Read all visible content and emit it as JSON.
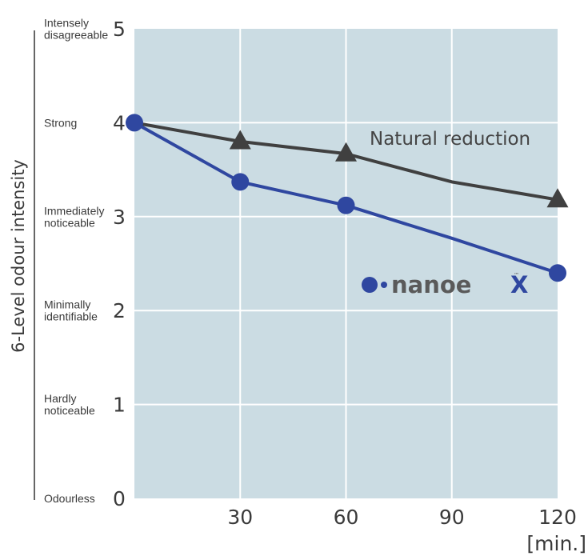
{
  "chart_data": {
    "type": "line",
    "title": "",
    "xlabel": "[min.]",
    "ylabel": "6-Level odour intensity",
    "x": [
      0,
      30,
      60,
      90,
      120
    ],
    "xticks": [
      "30",
      "60",
      "90",
      "120"
    ],
    "xlim": [
      0,
      120
    ],
    "ylim": [
      0,
      5
    ],
    "yticks": [
      "0",
      "1",
      "2",
      "3",
      "4",
      "5"
    ],
    "ylevels": [
      [
        "Odourless"
      ],
      [
        "Hardly",
        "noticeable"
      ],
      [
        "Minimally",
        "identifiable"
      ],
      [
        "Immediately",
        "noticeable"
      ],
      [
        "Strong"
      ],
      [
        "Intensely",
        "disagreeable"
      ]
    ],
    "grid": true,
    "series": [
      {
        "name": "Natural reduction",
        "color": "#404040",
        "marker": "triangle",
        "points": [
          [
            0,
            4.0
          ],
          [
            30,
            3.8
          ],
          [
            60,
            3.67
          ],
          [
            90,
            3.37
          ],
          [
            120,
            3.18
          ]
        ],
        "marked": [
          false,
          true,
          true,
          false,
          true
        ]
      },
      {
        "name": "nanoeX",
        "color": "#2f47a0",
        "marker": "circle",
        "points": [
          [
            0,
            4.0
          ],
          [
            30,
            3.37
          ],
          [
            60,
            3.12
          ],
          [
            90,
            2.77
          ],
          [
            120,
            2.4
          ]
        ],
        "marked": [
          true,
          true,
          true,
          false,
          true
        ]
      }
    ],
    "annotations": {
      "natural": "Natural reduction",
      "logo": "nanoe",
      "logo_x": "X",
      "logo_tm": "™"
    },
    "colors": {
      "plot_bg": "#cbdce3",
      "grid": "#ffffff",
      "axis": "#333333",
      "logo_blue": "#2f47a0",
      "logo_gray": "#5a5a5a"
    }
  }
}
